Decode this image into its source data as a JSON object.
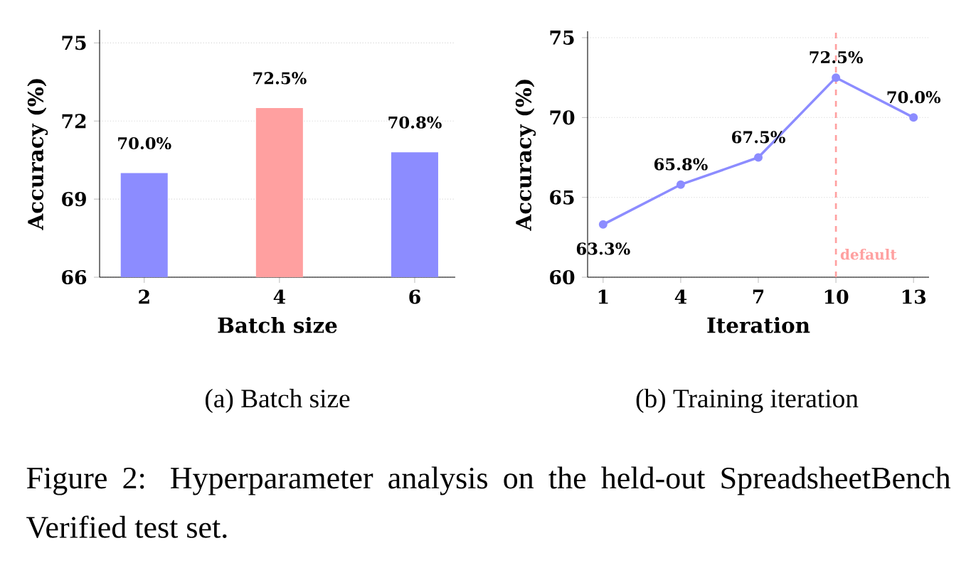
{
  "chart_data": [
    {
      "type": "bar",
      "title": "(a) Batch size",
      "xlabel": "Batch size",
      "ylabel": "Accuracy (%)",
      "categories": [
        "2",
        "4",
        "6"
      ],
      "values": [
        70.0,
        72.5,
        70.8
      ],
      "colors": [
        "#8c8cff",
        "#ffa0a0",
        "#8c8cff"
      ],
      "value_labels": [
        "70.0%",
        "72.5%",
        "70.8%"
      ],
      "ylim": [
        66,
        75.5
      ],
      "yticks": [
        66,
        69,
        72,
        75
      ],
      "grid": "y"
    },
    {
      "type": "line",
      "title": "(b) Training iteration",
      "xlabel": "Iteration",
      "ylabel": "Accuracy (%)",
      "x": [
        1,
        4,
        7,
        10,
        13
      ],
      "values": [
        63.3,
        65.8,
        67.5,
        72.5,
        70.0
      ],
      "color": "#8c8cff",
      "marker": "circle",
      "value_labels": [
        "63.3%",
        "65.8%",
        "67.5%",
        "72.5%",
        "70.0%"
      ],
      "xlim": [
        0.4,
        13.6
      ],
      "xticks": [
        1,
        4,
        7,
        10,
        13
      ],
      "ylim": [
        60,
        75.4
      ],
      "yticks": [
        60,
        65,
        70,
        75
      ],
      "grid": "y",
      "ref_lines": [
        {
          "axis": "x",
          "value": 10,
          "label": "default",
          "color": "#ffa0a0",
          "line_style": "dashed"
        }
      ],
      "annotations": [
        "Figure 2: Hyperparameter analysis on the held-out SpreadsheetBench Verified test set."
      ]
    }
  ]
}
